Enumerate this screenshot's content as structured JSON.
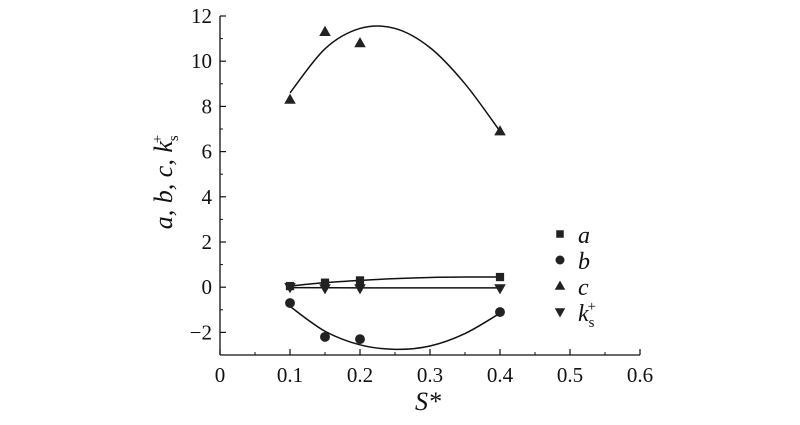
{
  "chart_data": {
    "type": "scatter",
    "xlabel": "S*",
    "ylabel": "a, b, c, k_s^+",
    "xlim": [
      0,
      0.6
    ],
    "ylim": [
      -3,
      12
    ],
    "x_ticks": [
      "0",
      "0.1",
      "0.2",
      "0.3",
      "0.4",
      "0.5",
      "0.6"
    ],
    "y_ticks": [
      "−2",
      "0",
      "2",
      "4",
      "6",
      "8",
      "10",
      "12"
    ],
    "x_tick_values": [
      0,
      0.1,
      0.2,
      0.3,
      0.4,
      0.5,
      0.6
    ],
    "y_tick_values": [
      -2,
      0,
      2,
      4,
      6,
      8,
      10,
      12
    ],
    "legend_position": "right",
    "series": [
      {
        "name": "a",
        "marker": "square",
        "x": [
          0.1,
          0.15,
          0.2,
          0.4
        ],
        "y": [
          0.05,
          0.2,
          0.3,
          0.45
        ],
        "fit": {
          "x": [
            0.1,
            0.15,
            0.2,
            0.25,
            0.3,
            0.35,
            0.4
          ],
          "y": [
            0.05,
            0.2,
            0.3,
            0.38,
            0.43,
            0.45,
            0.45
          ]
        }
      },
      {
        "name": "b",
        "marker": "circle",
        "x": [
          0.1,
          0.15,
          0.2,
          0.4
        ],
        "y": [
          -0.7,
          -2.2,
          -2.3,
          -1.1
        ],
        "fit": {
          "x": [
            0.1,
            0.15,
            0.2,
            0.25,
            0.3,
            0.35,
            0.4
          ],
          "y": [
            -0.85,
            -1.95,
            -2.55,
            -2.75,
            -2.6,
            -2.05,
            -1.15
          ]
        }
      },
      {
        "name": "c",
        "marker": "triangle-up",
        "x": [
          0.1,
          0.15,
          0.2,
          0.4
        ],
        "y": [
          8.3,
          11.3,
          10.8,
          6.9
        ],
        "fit": {
          "x": [
            0.1,
            0.15,
            0.2,
            0.25,
            0.3,
            0.35,
            0.4
          ],
          "y": [
            8.6,
            10.55,
            11.45,
            11.45,
            10.6,
            9.0,
            6.9
          ]
        }
      },
      {
        "name": "k_s^+",
        "marker": "triangle-down",
        "x": [
          0.1,
          0.15,
          0.2,
          0.4
        ],
        "y": [
          0.0,
          -0.05,
          -0.05,
          -0.05
        ],
        "fit": {
          "x": [
            0.1,
            0.2,
            0.3,
            0.4
          ],
          "y": [
            -0.02,
            -0.03,
            -0.03,
            -0.03
          ]
        }
      }
    ],
    "legend": [
      {
        "base": "a",
        "sub": "",
        "sup": ""
      },
      {
        "base": "b",
        "sub": "",
        "sup": ""
      },
      {
        "base": "c",
        "sub": "",
        "sup": ""
      },
      {
        "base": "k",
        "sub": "s",
        "sup": "+"
      }
    ]
  }
}
